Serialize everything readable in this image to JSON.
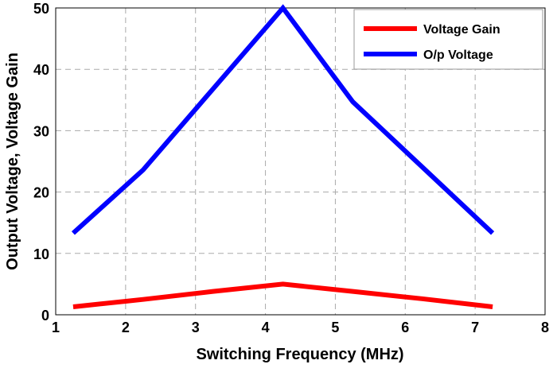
{
  "chart_data": {
    "type": "line",
    "title": "",
    "xlabel": "Switching Frequency (MHz)",
    "ylabel": "Output Voltage, Voltage Gain",
    "xlim": [
      1,
      8
    ],
    "ylim": [
      0,
      50
    ],
    "xticks": [
      "1",
      "2",
      "3",
      "4",
      "5",
      "6",
      "7",
      "8"
    ],
    "yticks": [
      "0",
      "10",
      "20",
      "30",
      "40",
      "50"
    ],
    "grid": true,
    "legend_position": "top-right",
    "x": [
      1.25,
      2.25,
      3.25,
      4.25,
      5.25,
      6.25,
      7.25
    ],
    "series": [
      {
        "name": "Voltage Gain",
        "color": "#ff0000",
        "values": [
          1.3,
          2.5,
          3.8,
          5.0,
          3.8,
          2.6,
          1.3
        ]
      },
      {
        "name": "O/p Voltage",
        "color": "#0000ff",
        "values": [
          13.3,
          23.6,
          36.8,
          50.0,
          34.7,
          24.0,
          13.3
        ]
      }
    ]
  }
}
